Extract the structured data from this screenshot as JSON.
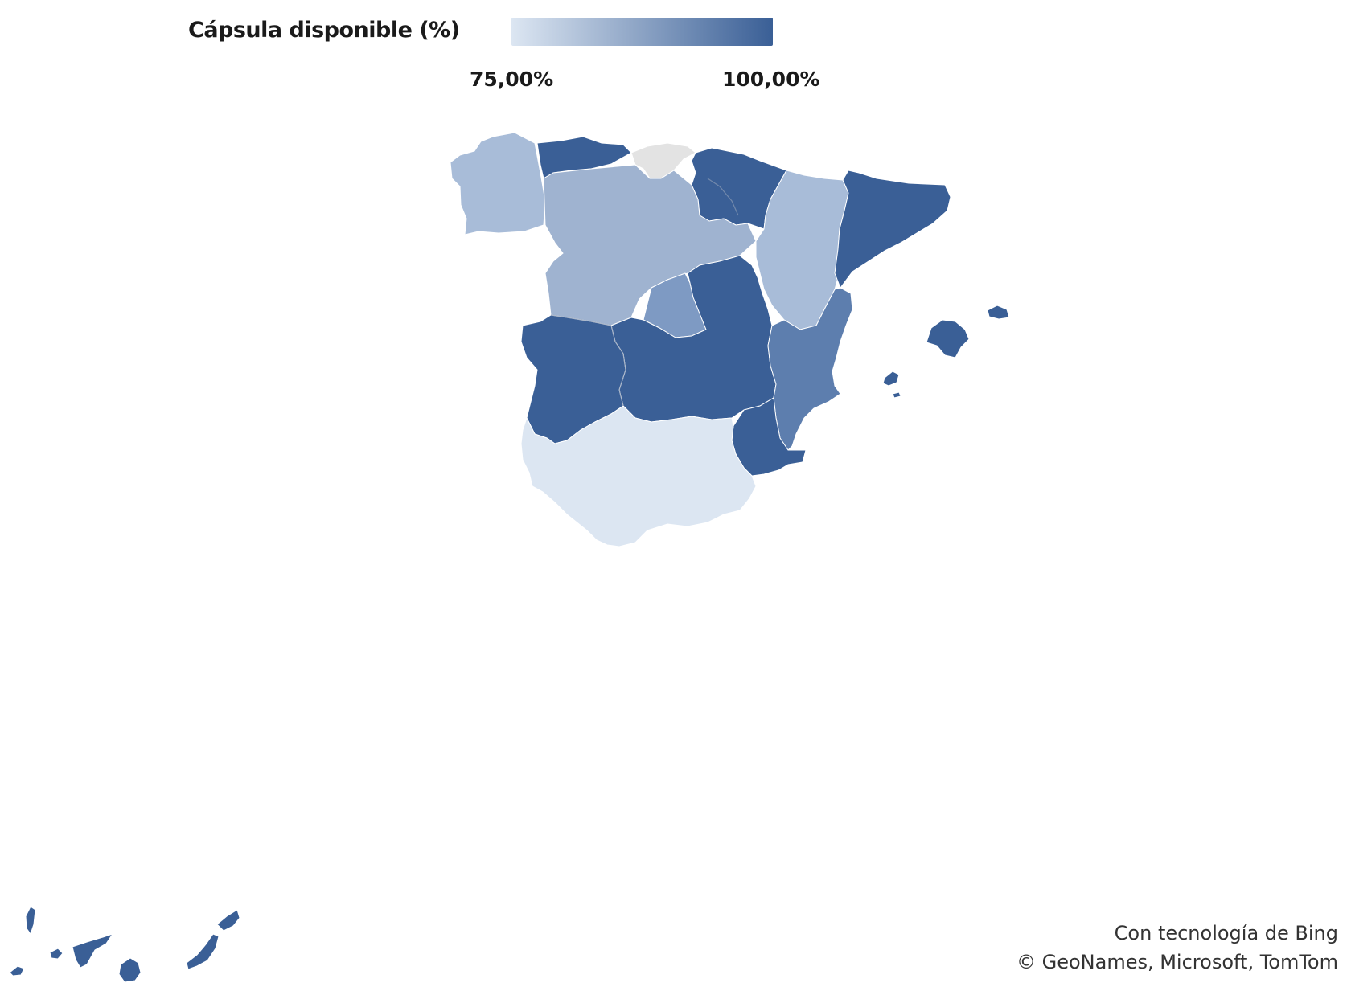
{
  "legend": {
    "title": "Cápsula disponible (%)",
    "min_label": "75,00%",
    "max_label": "100,00%",
    "color_min": "#dce6f2",
    "color_max": "#3a5f96"
  },
  "colors": {
    "galicia": "#a8bcd8",
    "asturias": "#3a5f96",
    "cantabria": "#e3e3e3",
    "pais_vasco_navarra_larioja": "#3a5f96",
    "castilla_y_leon": "#9fb3d0",
    "aragon": "#a8bcd8",
    "cataluna": "#3a5f96",
    "madrid": "#7e9ac3",
    "castilla_la_mancha": "#3a5f96",
    "extremadura": "#3a5f96",
    "valencia": "#5d7eae",
    "murcia": "#3a5f96",
    "andalucia": "#dce6f2",
    "baleares": "#3a5f96",
    "canarias": "#3a5f96",
    "border": "#8a9bb5"
  },
  "attribution": {
    "line1": "Con tecnología de Bing",
    "line2": "© GeoNames, Microsoft, TomTom"
  }
}
